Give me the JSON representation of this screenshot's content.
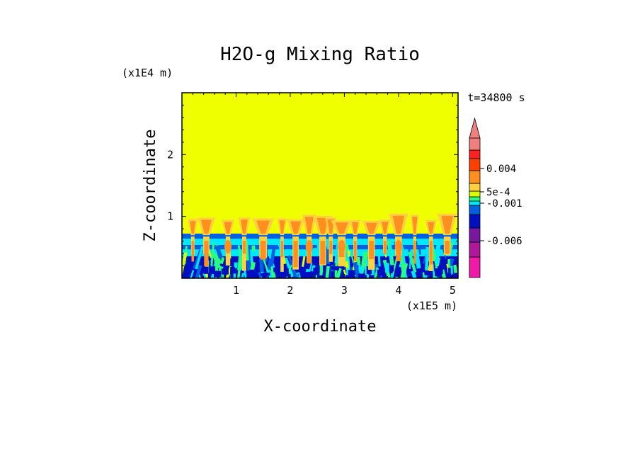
{
  "chart_data": {
    "type": "heatmap",
    "title": "H2O-g Mixing Ratio",
    "xlabel": "X-coordinate",
    "ylabel": "Z-coordinate",
    "x_multiplier": "(x1E5 m)",
    "z_multiplier": "(x1E4 m)",
    "time_label": "t=34800 s",
    "xlim": [
      0,
      5.1
    ],
    "ylim": [
      0,
      3.0
    ],
    "x_ticks": [
      1,
      2,
      3,
      4,
      5
    ],
    "y_ticks": [
      1,
      2
    ],
    "grid": false,
    "colorbar": {
      "colors": [
        "#f01aa8",
        "#b0189c",
        "#7818a0",
        "#0010c0",
        "#0060e0",
        "#00e8ff",
        "#28ff80",
        "#d8ff00",
        "#ffd040",
        "#ff9020",
        "#ff4000",
        "#ff2020",
        "#f08080"
      ],
      "labels": [
        "0.004",
        "5e-4",
        "-0.001",
        "-0.006"
      ],
      "extend_max": true
    },
    "field": {
      "description_levels": "upper domain uniform near-zero band, lower boundary layer mixed negative/positive anomalies",
      "uniform_top_color": "#f0ff00",
      "boundary_layer_top": 0.72,
      "plume_top": 1.05
    }
  }
}
